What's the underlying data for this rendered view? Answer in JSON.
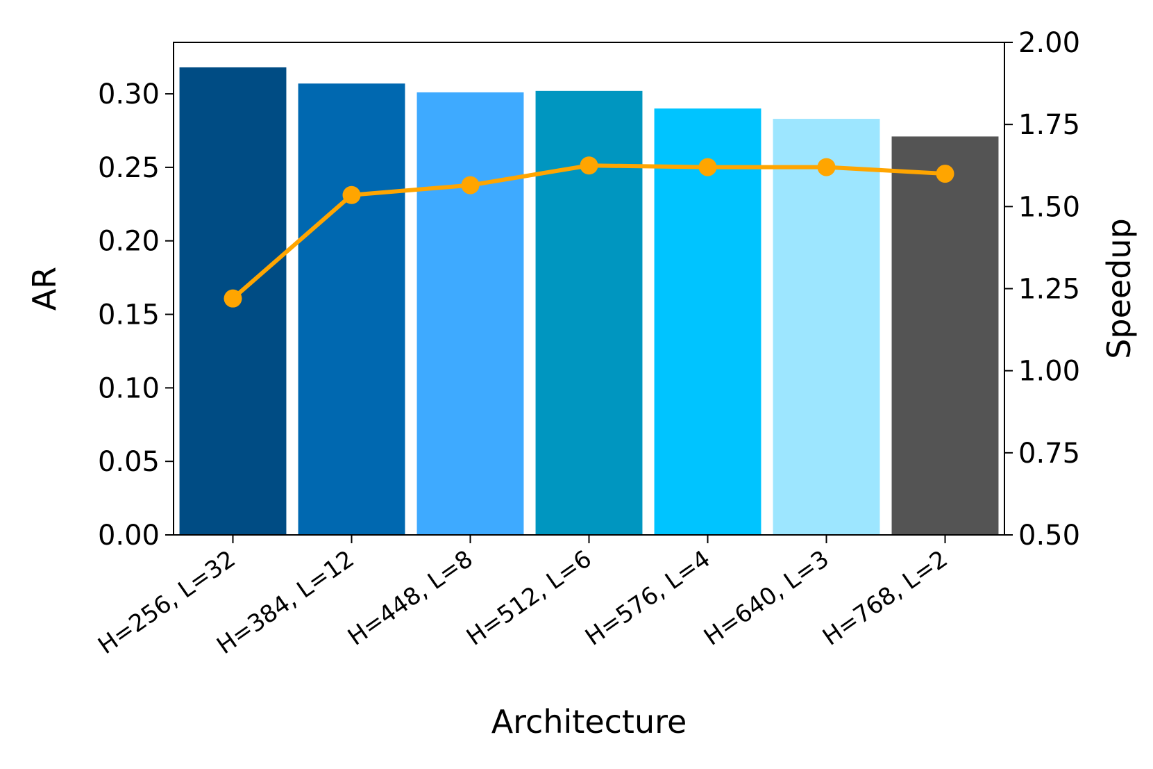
{
  "chart_data": {
    "type": "bar",
    "xlabel": "Architecture",
    "ylabel": "AR",
    "y2label": "Speedup",
    "ylim": [
      0,
      0.335
    ],
    "y2lim": [
      0.5,
      2.0
    ],
    "yticks": [
      "0.00",
      "0.05",
      "0.10",
      "0.15",
      "0.20",
      "0.25",
      "0.30"
    ],
    "y2ticks": [
      "0.50",
      "0.75",
      "1.00",
      "1.25",
      "1.50",
      "1.75",
      "2.00"
    ],
    "categories": [
      "H=256, L=32",
      "H=384, L=12",
      "H=448, L=8",
      "H=512, L=6",
      "H=576, L=4",
      "H=640, L=3",
      "H=768, L=2"
    ],
    "series": [
      {
        "axis": "left",
        "kind": "bar",
        "values": [
          0.318,
          0.307,
          0.301,
          0.302,
          0.29,
          0.283,
          0.271
        ],
        "colors": [
          "#004c84",
          "#0068b0",
          "#3eaaff",
          "#0096c0",
          "#00c4ff",
          "#9de6ff",
          "#545454"
        ]
      },
      {
        "axis": "right",
        "kind": "line",
        "values": [
          1.22,
          1.535,
          1.565,
          1.625,
          1.62,
          1.62,
          1.6
        ],
        "color": "#ffa500"
      }
    ],
    "grid": false,
    "legend": "none"
  }
}
